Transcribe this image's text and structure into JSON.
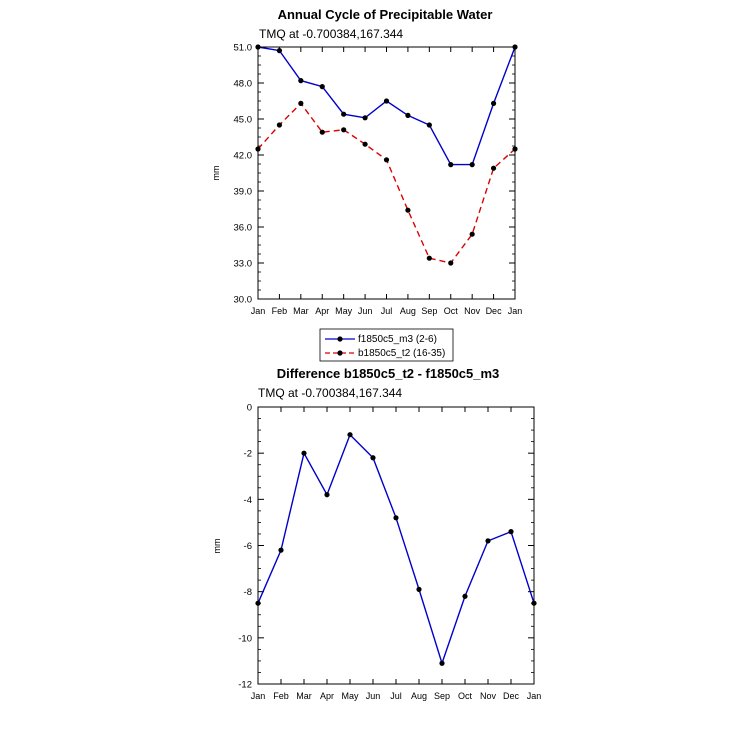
{
  "chart_data": [
    {
      "type": "line",
      "title": "Annual Cycle of Precipitable Water",
      "subtitle": "TMQ at -0.700384,167.344",
      "ylabel": "mm",
      "xlabel": "",
      "categories": [
        "Jan",
        "Feb",
        "Mar",
        "Apr",
        "May",
        "Jun",
        "Jul",
        "Aug",
        "Sep",
        "Oct",
        "Nov",
        "Dec",
        "Jan"
      ],
      "ylim": [
        30.0,
        51.0
      ],
      "yticks": [
        "30.0",
        "33.0",
        "36.0",
        "39.0",
        "42.0",
        "45.0",
        "48.0",
        "51.0"
      ],
      "series": [
        {
          "name": "f1850c5_m3 (2-6)",
          "color": "#0000cc",
          "dash": "solid",
          "values": [
            51.0,
            50.7,
            48.2,
            47.7,
            45.4,
            45.1,
            46.5,
            45.3,
            44.5,
            41.2,
            41.2,
            46.3,
            51.0
          ]
        },
        {
          "name": "b1850c5_t2 (16-35)",
          "color": "#dd0000",
          "dash": "dashed",
          "values": [
            42.5,
            44.5,
            46.3,
            43.9,
            44.1,
            42.9,
            41.6,
            37.4,
            33.4,
            33.0,
            35.4,
            40.9,
            42.5
          ]
        }
      ],
      "legend_position": "bottom"
    },
    {
      "type": "line",
      "title": "Difference b1850c5_t2 - f1850c5_m3",
      "subtitle": "TMQ at -0.700384,167.344",
      "ylabel": "mm",
      "xlabel": "",
      "categories": [
        "Jan",
        "Feb",
        "Mar",
        "Apr",
        "May",
        "Jun",
        "Jul",
        "Aug",
        "Sep",
        "Oct",
        "Nov",
        "Dec",
        "Jan"
      ],
      "ylim": [
        -12,
        0
      ],
      "yticks": [
        "-12",
        "-10",
        "-8",
        "-6",
        "-4",
        "-2",
        "0"
      ],
      "series": [
        {
          "color": "#0000cc",
          "dash": "solid",
          "values": [
            -8.5,
            -6.2,
            -2.0,
            -3.8,
            -1.2,
            -2.2,
            -4.8,
            -7.9,
            -11.1,
            -8.2,
            -5.8,
            -5.4,
            -8.5
          ]
        }
      ]
    }
  ]
}
